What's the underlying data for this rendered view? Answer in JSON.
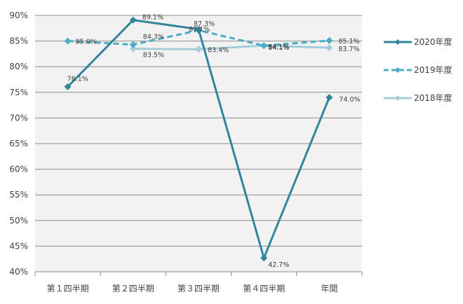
{
  "chart_data": {
    "type": "line",
    "categories": [
      "第１四半期",
      "第２四半期",
      "第３四半期",
      "第４四半期",
      "年間"
    ],
    "ylim": [
      40,
      90
    ],
    "yticks": [
      "40%",
      "45%",
      "50%",
      "55%",
      "60%",
      "65%",
      "70%",
      "75%",
      "80%",
      "85%",
      "90%"
    ],
    "grid": "horizontal",
    "legend_position": "right",
    "title": "",
    "xlabel": "",
    "ylabel": "",
    "series": [
      {
        "name": "2020年度",
        "values": [
          76.1,
          89.1,
          87.3,
          42.7,
          74.0
        ],
        "labels": [
          "76.1%",
          "89.1%",
          "87.3%",
          "42.7%",
          "74.0%"
        ],
        "color": "#31859c",
        "style": "solid"
      },
      {
        "name": "2019年度",
        "values": [
          85.0,
          84.3,
          87.1,
          84.1,
          85.1
        ],
        "labels": [
          "85.0%",
          "84.3%",
          "87.1%",
          "84.1%",
          "85.1%"
        ],
        "color": "#4bacc6",
        "style": "dashed"
      },
      {
        "name": "2018年度",
        "values": [
          null,
          83.5,
          83.4,
          84.1,
          83.7
        ],
        "labels": [
          "",
          "83.5%",
          "83.4%",
          "84.1%",
          "83.7%"
        ],
        "color": "#a5cdd9",
        "style": "solid"
      }
    ]
  }
}
